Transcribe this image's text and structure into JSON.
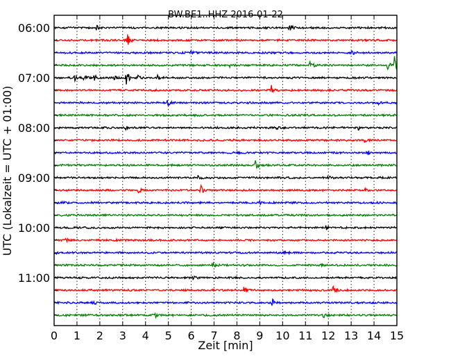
{
  "chart_data": {
    "type": "line",
    "title": "BW.BE1..HHZ 2016-01-22",
    "xlabel": "Zeit  [min]",
    "ylabel": "UTC (Lokalzeit = UTC + 01:00)",
    "xlim": [
      0,
      15
    ],
    "x_ticks": [
      0,
      1,
      2,
      3,
      4,
      5,
      6,
      7,
      8,
      9,
      10,
      11,
      12,
      13,
      14,
      15
    ],
    "x_tick_labels": [
      "0",
      "1",
      "2",
      "3",
      "4",
      "5",
      "6",
      "7",
      "8",
      "9",
      "10",
      "11",
      "12",
      "13",
      "14",
      "15"
    ],
    "y_tick_labels": [
      "06:00",
      "07:00",
      "08:00",
      "09:00",
      "10:00",
      "11:00"
    ],
    "grid": true,
    "colors": [
      "#000000",
      "#ff0000",
      "#0000ff",
      "#008000"
    ],
    "tracks": [
      {
        "time": "06:00",
        "color": "#000000",
        "events": [
          [
            1.85,
            4
          ],
          [
            10.3,
            9
          ]
        ]
      },
      {
        "time": "06:15",
        "color": "#ff0000",
        "events": [
          [
            3.2,
            10
          ]
        ]
      },
      {
        "time": "06:30",
        "color": "#0000ff",
        "events": [
          [
            6.0,
            3
          ],
          [
            13.0,
            5
          ]
        ]
      },
      {
        "time": "06:45",
        "color": "#008000",
        "events": [
          [
            7.7,
            3
          ],
          [
            11.2,
            8
          ],
          [
            14.6,
            5
          ],
          [
            14.9,
            14
          ]
        ]
      },
      {
        "time": "07:00",
        "color": "#000000",
        "events": [
          [
            0.9,
            4
          ],
          [
            1.3,
            4
          ],
          [
            1.75,
            5
          ],
          [
            2.6,
            4
          ],
          [
            3.15,
            14
          ],
          [
            3.65,
            5
          ],
          [
            4.5,
            4
          ]
        ]
      },
      {
        "time": "07:15",
        "color": "#ff0000",
        "events": [
          [
            9.5,
            7
          ]
        ]
      },
      {
        "time": "07:30",
        "color": "#0000ff",
        "events": [
          [
            4.95,
            6
          ],
          [
            14.2,
            3
          ]
        ]
      },
      {
        "time": "07:45",
        "color": "#008000",
        "events": []
      },
      {
        "time": "08:00",
        "color": "#000000",
        "events": [
          [
            3.1,
            3
          ],
          [
            9.7,
            3
          ],
          [
            13.3,
            3
          ]
        ]
      },
      {
        "time": "08:15",
        "color": "#ff0000",
        "events": [
          [
            13.6,
            4
          ]
        ]
      },
      {
        "time": "08:30",
        "color": "#0000ff",
        "events": [
          [
            13.7,
            4
          ]
        ]
      },
      {
        "time": "08:45",
        "color": "#008000",
        "events": [
          [
            8.8,
            7
          ]
        ]
      },
      {
        "time": "09:00",
        "color": "#000000",
        "events": [
          [
            6.3,
            4
          ],
          [
            12.0,
            3
          ]
        ]
      },
      {
        "time": "09:15",
        "color": "#ff0000",
        "events": [
          [
            3.7,
            4
          ],
          [
            6.4,
            8
          ],
          [
            13.6,
            3
          ]
        ]
      },
      {
        "time": "09:30",
        "color": "#0000ff",
        "events": [
          [
            0.35,
            3
          ],
          [
            9.0,
            3
          ]
        ]
      },
      {
        "time": "09:45",
        "color": "#008000",
        "events": []
      },
      {
        "time": "10:00",
        "color": "#000000",
        "events": [
          [
            11.9,
            3
          ]
        ]
      },
      {
        "time": "10:15",
        "color": "#ff0000",
        "events": [
          [
            0.5,
            4
          ],
          [
            2.65,
            3
          ]
        ]
      },
      {
        "time": "10:30",
        "color": "#0000ff",
        "events": [
          [
            0.05,
            3
          ],
          [
            10.1,
            3
          ]
        ]
      },
      {
        "time": "10:45",
        "color": "#008000",
        "events": [
          [
            6.95,
            3
          ],
          [
            11.7,
            3
          ]
        ]
      },
      {
        "time": "11:00",
        "color": "#000000",
        "events": [
          [
            6.1,
            3
          ]
        ]
      },
      {
        "time": "11:15",
        "color": "#ff0000",
        "events": [
          [
            8.3,
            6
          ],
          [
            12.2,
            14
          ]
        ]
      },
      {
        "time": "11:30",
        "color": "#0000ff",
        "events": [
          [
            1.7,
            5
          ],
          [
            9.55,
            5
          ]
        ]
      },
      {
        "time": "11:45",
        "color": "#008000",
        "events": [
          [
            4.45,
            4
          ],
          [
            11.8,
            3
          ]
        ]
      }
    ]
  }
}
